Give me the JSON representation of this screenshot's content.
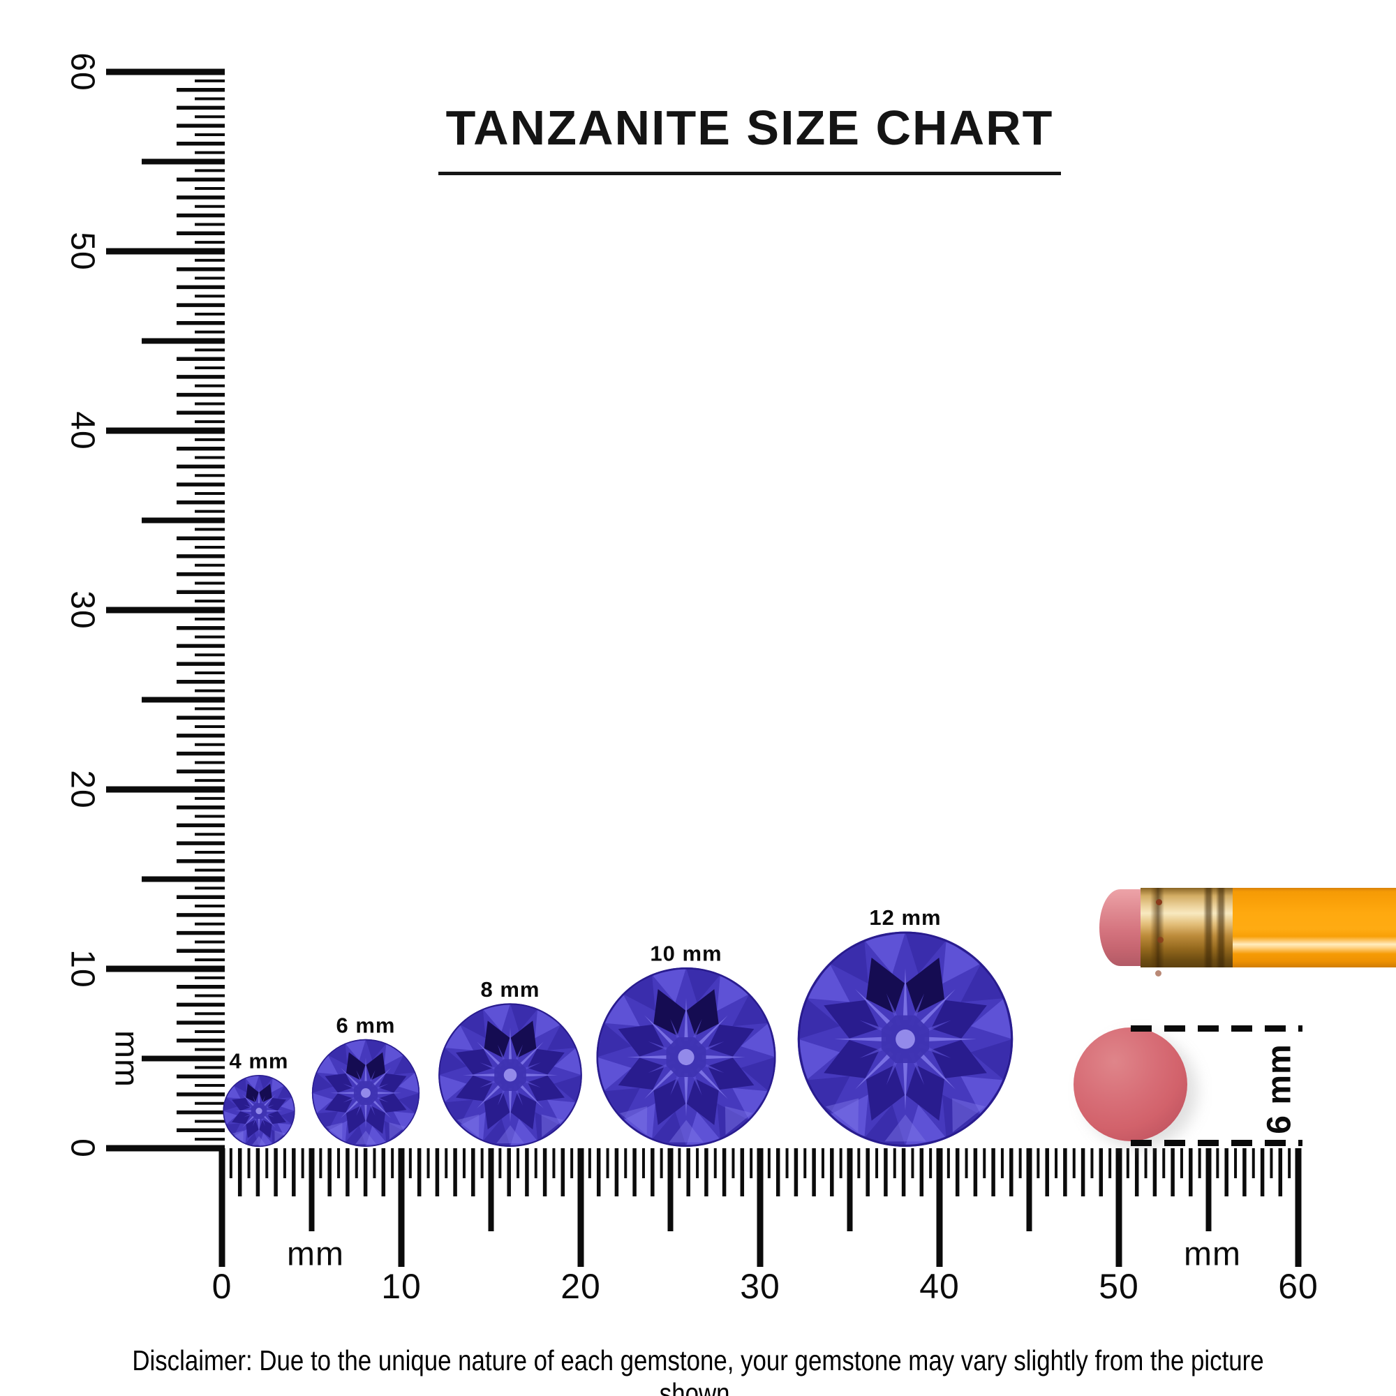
{
  "title": {
    "text": "TANZANITE SIZE CHART"
  },
  "rulers": {
    "vertical": {
      "unit": "mm",
      "numbers": [
        "0",
        "10",
        "20",
        "30",
        "40",
        "50",
        "60"
      ]
    },
    "horizontal": {
      "unit_left": "mm",
      "unit_right": "mm",
      "numbers": [
        "0",
        "10",
        "20",
        "30",
        "40",
        "50",
        "60"
      ]
    }
  },
  "gems": [
    {
      "label": "4 mm",
      "size_mm": 4
    },
    {
      "label": "6 mm",
      "size_mm": 6
    },
    {
      "label": "8 mm",
      "size_mm": 8
    },
    {
      "label": "10 mm",
      "size_mm": 10
    },
    {
      "label": "12 mm",
      "size_mm": 12
    }
  ],
  "comparison": {
    "pencil": "pencil with eraser tip",
    "eraser_label": "6 mm",
    "eraser_diameter_mm": 6
  },
  "disclaimer": "Disclaimer: Due to the unique nature of each gemstone, your gemstone may vary slightly from the picture shown.",
  "colors": {
    "ink": "#0b0b0b",
    "gem": {
      "base": "#4639bd",
      "light": "#5e52d6",
      "mid": "#3a2dac",
      "dark": "#291c8e",
      "darkest": "#150c52",
      "bright": "#8177e8",
      "core": "#3f33b2",
      "spark": "#9c93f0"
    },
    "pencil": {
      "body": "#ffa90f",
      "body_dark": "#d9820a",
      "highlight": "#ffedbf",
      "ferrule": "#e3c183",
      "ferrule_dark": "#6b4a12",
      "eraser_tip": "#d4737e"
    },
    "eraser_disc": "#d2626b"
  },
  "chart_data": {
    "type": "size-comparison-diagram",
    "title": "TANZANITE SIZE CHART",
    "unit": "mm",
    "categories": [
      "4 mm",
      "6 mm",
      "8 mm",
      "10 mm",
      "12 mm"
    ],
    "values": [
      4,
      6,
      8,
      10,
      12
    ],
    "ruler_range_mm": [
      0,
      60
    ],
    "reference_object": {
      "name": "pencil eraser",
      "diameter_mm": 6
    }
  }
}
